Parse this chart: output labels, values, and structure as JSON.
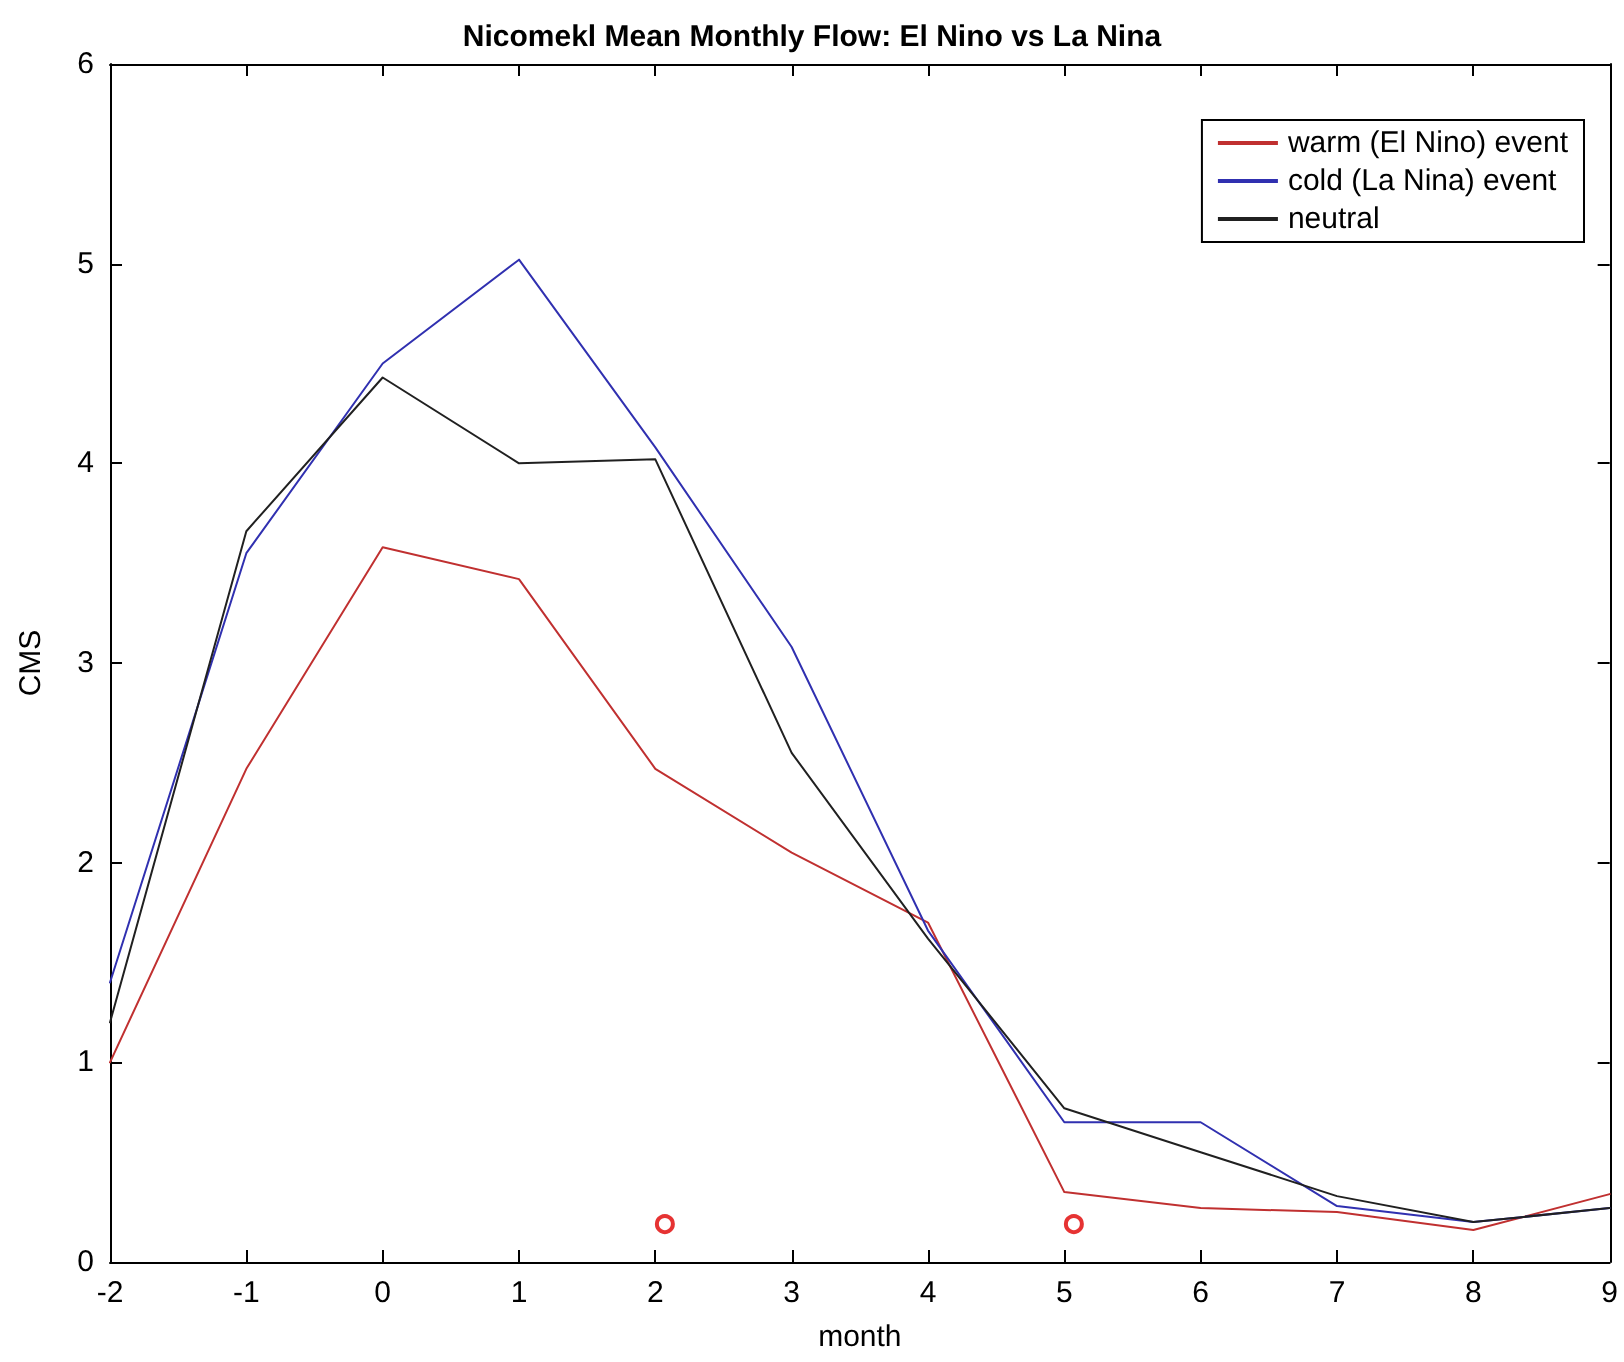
{
  "chart_data": {
    "type": "line",
    "title": "Nicomekl Mean Monthly Flow: El Nino vs La Nina",
    "xlabel": "month",
    "ylabel": "CMS",
    "x": [
      -2,
      -1,
      0,
      1,
      2,
      3,
      4,
      5,
      6,
      7,
      8,
      9
    ],
    "series": [
      {
        "name": "warm (El Nino) event",
        "color": "#c03030",
        "values": [
          1.0,
          2.47,
          3.58,
          3.42,
          2.47,
          2.05,
          1.7,
          0.35,
          0.27,
          0.25,
          0.16,
          0.34
        ]
      },
      {
        "name": "cold (La Nina) event",
        "color": "#3030b0",
        "values": [
          1.4,
          3.55,
          4.5,
          5.02,
          4.08,
          3.08,
          1.66,
          0.7,
          0.7,
          0.28,
          0.2,
          0.27
        ]
      },
      {
        "name": "neutral",
        "color": "#202020",
        "values": [
          1.2,
          3.66,
          4.43,
          4.0,
          4.02,
          2.55,
          1.62,
          0.77,
          0.55,
          0.33,
          0.2,
          0.27
        ]
      },
      {
        "type": "scatter",
        "color": "#e00000",
        "marker": "circle",
        "x": [
          2.07,
          5.07
        ],
        "values": [
          0.19,
          0.19
        ]
      }
    ],
    "xlim": [
      -2,
      9
    ],
    "xticks": [
      -2,
      -1,
      0,
      1,
      2,
      3,
      4,
      5,
      6,
      7,
      8,
      9
    ],
    "ylim": [
      0,
      6
    ],
    "yticks": [
      0,
      1,
      2,
      3,
      4,
      5,
      6
    ],
    "grid": false,
    "legend": "top right",
    "marker": "none",
    "line_style": "solid"
  }
}
